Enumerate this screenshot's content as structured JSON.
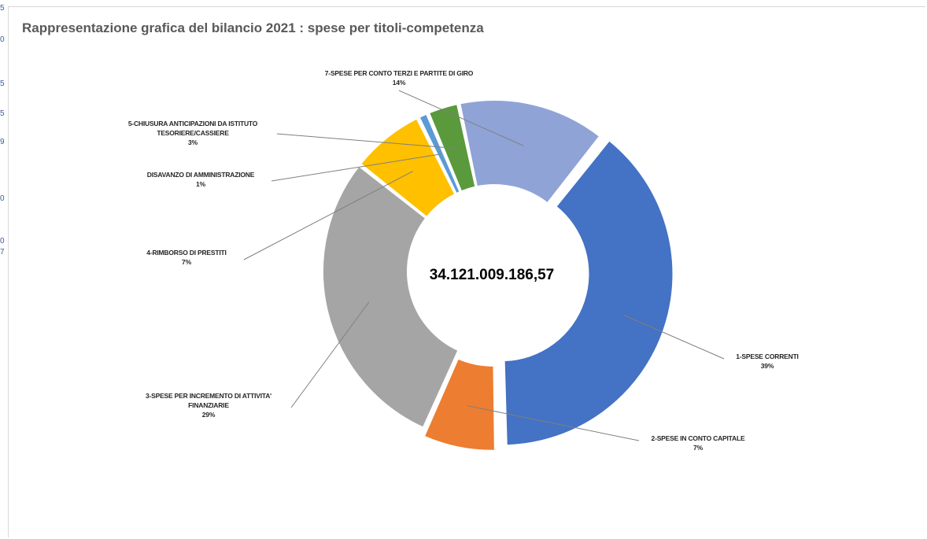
{
  "title": "Rappresentazione grafica del bilancio 2021 : spese per titoli-competenza",
  "center_label": "34.121.009.186,57",
  "stray_chars": [
    "5",
    "0",
    "5",
    "5",
    "9",
    "0",
    "0",
    "7"
  ],
  "chart_data": {
    "type": "pie",
    "donut": true,
    "title": "Rappresentazione grafica del bilancio 2021 : spese per titoli-competenza",
    "center_total": "34.121.009.186,57",
    "slices": [
      {
        "label": [
          "7-SPESE PER CONTO TERZI E PARTITE DI GIRO"
        ],
        "percent_label": "14%",
        "value": 14,
        "color": "#8fa3d6"
      },
      {
        "label": [
          "1-SPESE CORRENTI"
        ],
        "percent_label": "39%",
        "value": 39,
        "color": "#4472c4"
      },
      {
        "label": [
          "2-SPESE IN CONTO CAPITALE"
        ],
        "percent_label": "7%",
        "value": 7,
        "color": "#ed7d31"
      },
      {
        "label": [
          "3-SPESE PER INCREMENTO DI ATTIVITA'",
          "FINANZIARIE"
        ],
        "percent_label": "29%",
        "value": 29,
        "color": "#a5a5a5"
      },
      {
        "label": [
          "4-RIMBORSO DI PRESTITI"
        ],
        "percent_label": "7%",
        "value": 7,
        "color": "#ffc000"
      },
      {
        "label": [
          "DISAVANZO DI AMMINISTRAZIONE"
        ],
        "percent_label": "1%",
        "value": 1,
        "color": "#5b9bd5"
      },
      {
        "label": [
          "5-CHIUSURA ANTICIPAZIONI DA ISTITUTO",
          "TESORIERE/CASSIERE"
        ],
        "percent_label": "3%",
        "value": 3,
        "color": "#5a9a3c"
      }
    ]
  }
}
